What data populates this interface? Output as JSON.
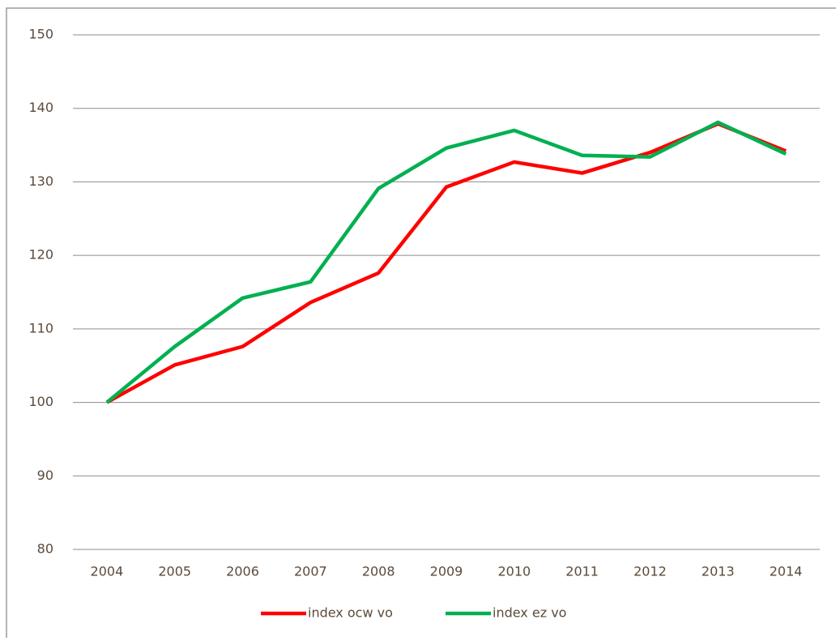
{
  "chart_data": {
    "type": "line",
    "x": [
      "2004",
      "2005",
      "2006",
      "2007",
      "2008",
      "2009",
      "2010",
      "2011",
      "2012",
      "2013",
      "2014"
    ],
    "series": [
      {
        "name": "index ocw vo",
        "color": "#ff0000",
        "values": [
          100,
          105.1,
          107.6,
          113.6,
          117.6,
          129.3,
          132.7,
          131.2,
          134.0,
          137.9,
          134.2
        ]
      },
      {
        "name": "index ez vo",
        "color": "#00b050",
        "values": [
          100,
          107.6,
          114.2,
          116.4,
          129.1,
          134.6,
          137.0,
          133.6,
          133.4,
          138.1,
          133.8
        ]
      }
    ],
    "ylim": [
      80,
      150
    ],
    "yticks": [
      80,
      90,
      100,
      110,
      120,
      130,
      140,
      150
    ],
    "grid": true,
    "legend": "bottom"
  }
}
